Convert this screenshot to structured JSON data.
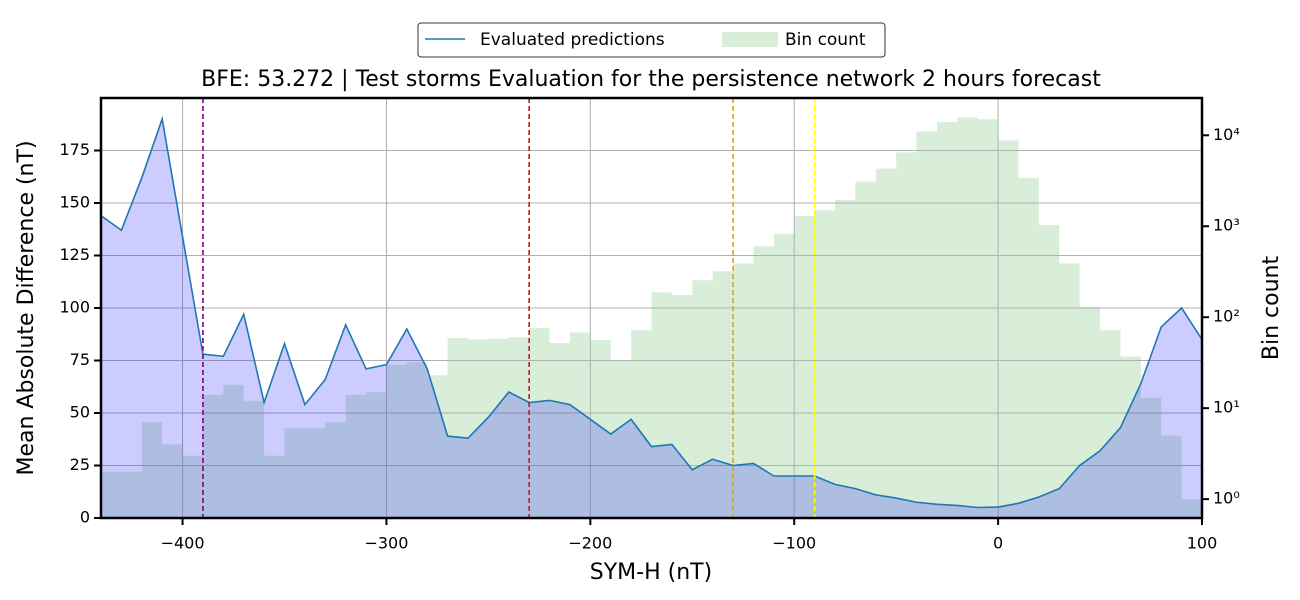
{
  "chart_data": {
    "type": "line",
    "title": "BFE: 53.272 | Test storms Evaluation for the persistence network 2 hours forecast",
    "x_label": "SYM-H (nT)",
    "y_label": "Mean Absolute Difference (nT)",
    "y2_label": "Bin count",
    "x": [
      -440,
      -430,
      -420,
      -410,
      -400,
      -390,
      -380,
      -370,
      -360,
      -350,
      -340,
      -330,
      -320,
      -310,
      -300,
      -290,
      -280,
      -270,
      -260,
      -250,
      -240,
      -230,
      -220,
      -210,
      -200,
      -190,
      -180,
      -170,
      -160,
      -150,
      -140,
      -130,
      -120,
      -110,
      -100,
      -90,
      -80,
      -70,
      -60,
      -50,
      -40,
      -30,
      -20,
      -10,
      0,
      10,
      20,
      30,
      40,
      50,
      60,
      70,
      80,
      90,
      100
    ],
    "series": [
      {
        "name": "Evaluated predictions",
        "color": "#1f77b4",
        "fill_color": "#0000ff",
        "fill_opacity": 0.2,
        "values": [
          144,
          137,
          162,
          190,
          134,
          78,
          77,
          97,
          55,
          83,
          54,
          66,
          92,
          71,
          73,
          90,
          71,
          39,
          38,
          48,
          60,
          55,
          56,
          54,
          47,
          40,
          47,
          34,
          35,
          23,
          28,
          25,
          26,
          20,
          20,
          20,
          16,
          14,
          11,
          9.5,
          7.5,
          6.5,
          6,
          5,
          5.2,
          7,
          10,
          14,
          25,
          32,
          43,
          64,
          91,
          100,
          85
        ]
      }
    ],
    "histogram": {
      "name": "Bin count",
      "color": "#2ca02c",
      "opacity": 0.18,
      "axis": "y2",
      "bins": [
        -440,
        -430,
        -420,
        -410,
        -400,
        -390,
        -380,
        -370,
        -360,
        -350,
        -340,
        -330,
        -320,
        -310,
        -300,
        -290,
        -280,
        -270,
        -260,
        -250,
        -240,
        -230,
        -220,
        -210,
        -200,
        -190,
        -180,
        -170,
        -160,
        -150,
        -140,
        -130,
        -120,
        -110,
        -100,
        -90,
        -80,
        -70,
        -60,
        -50,
        -40,
        -30,
        -20,
        -10,
        0,
        10,
        20,
        30,
        40,
        50,
        60,
        70,
        80,
        90,
        100
      ],
      "counts": [
        2,
        2,
        7,
        4,
        3,
        14,
        18,
        12,
        3,
        6,
        6,
        7,
        14,
        15,
        30,
        32,
        23,
        59,
        57,
        58,
        60,
        76,
        52,
        68,
        56,
        33,
        72,
        188,
        175,
        255,
        320,
        390,
        600,
        830,
        1300,
        1500,
        1950,
        3100,
        4300,
        6500,
        11000,
        14000,
        15700,
        15000,
        8800,
        3400,
        1030,
        390,
        130,
        72,
        37,
        13,
        5,
        1
      ]
    },
    "vlines": [
      {
        "x": -390,
        "color": "#800080"
      },
      {
        "x": -230,
        "color": "#b22222"
      },
      {
        "x": -130,
        "color": "#daa520"
      },
      {
        "x": -90,
        "color": "#ffff00"
      }
    ],
    "xlim": [
      -440,
      100
    ],
    "xticks": [
      {
        "value": -400,
        "label": "−400"
      },
      {
        "value": -300,
        "label": "−300"
      },
      {
        "value": -200,
        "label": "−200"
      },
      {
        "value": -100,
        "label": "−100"
      },
      0,
      100
    ],
    "ylim": [
      0,
      200
    ],
    "yticks": [
      0,
      25,
      50,
      75,
      100,
      125,
      150,
      175
    ],
    "y2lim": [
      0.62,
      25700
    ],
    "y2_log": true,
    "y2ticks": [
      {
        "value": 1,
        "label": "10⁰"
      },
      {
        "value": 10,
        "label": "10¹"
      },
      {
        "value": 100,
        "label": "10²"
      },
      {
        "value": 1000,
        "label": "10³"
      },
      {
        "value": 10000,
        "label": "10⁴"
      }
    ],
    "grid": true
  }
}
